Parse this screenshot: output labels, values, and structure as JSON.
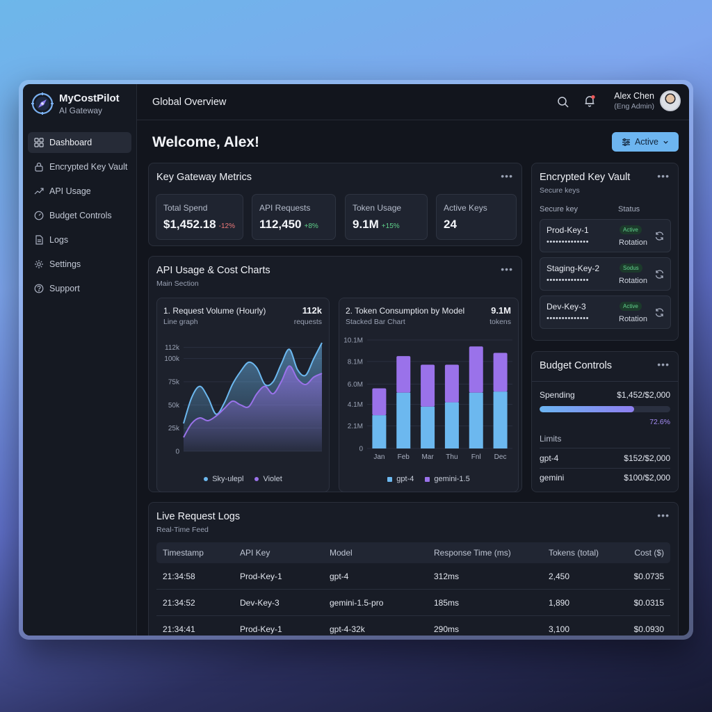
{
  "brand": {
    "name": "MyCostPilot",
    "subtitle": "AI Gateway"
  },
  "sidebar": {
    "items": [
      {
        "label": "Dashboard",
        "icon": "grid-icon",
        "active": true
      },
      {
        "label": "Encrypted Key Vault",
        "icon": "lock-icon"
      },
      {
        "label": "API Usage",
        "icon": "trend-icon"
      },
      {
        "label": "Budget Controls",
        "icon": "gauge-icon"
      },
      {
        "label": "Logs",
        "icon": "document-icon"
      },
      {
        "label": "Settings",
        "icon": "gear-icon"
      },
      {
        "label": "Support",
        "icon": "help-icon"
      }
    ]
  },
  "header": {
    "title": "Global Overview"
  },
  "user": {
    "name": "Alex Chen",
    "role": "(Eng Admin)"
  },
  "welcome": "Welcome, Alex!",
  "status_button": {
    "label": "Active"
  },
  "metrics": {
    "title": "Key Gateway Metrics",
    "items": [
      {
        "label": "Total Spend",
        "value": "$1,452.18",
        "delta": "-12%",
        "trend": "down"
      },
      {
        "label": "API Requests",
        "value": "112,450",
        "delta": "+8%",
        "trend": "up"
      },
      {
        "label": "Token Usage",
        "value": "9.1M",
        "delta": "+15%",
        "trend": "up"
      },
      {
        "label": "Active Keys",
        "value": "24",
        "delta": "",
        "trend": ""
      }
    ]
  },
  "charts_section": {
    "title": "API Usage & Cost Charts",
    "subtitle": "Main Section"
  },
  "colors": {
    "sky": "#6cb8ef",
    "violet": "#9a72ea",
    "accent": "#6db5f0"
  },
  "chart_data": [
    {
      "type": "area",
      "title": "1. Request Volume (Hourly)",
      "subtitle": "Line graph",
      "total": "112k",
      "unit": "requests",
      "y_ticks": [
        "0",
        "25k",
        "50k",
        "75k",
        "100k",
        "112k"
      ],
      "ylim": [
        0,
        120000
      ],
      "x": [
        0,
        1,
        2,
        3,
        4,
        5,
        6,
        7,
        8,
        9,
        10,
        11,
        12,
        13,
        14,
        15,
        16,
        17
      ],
      "series": [
        {
          "name": "Sky-ulepl",
          "color": "#6cb8ef",
          "values": [
            30000,
            58000,
            70000,
            58000,
            40000,
            52000,
            72000,
            86000,
            96000,
            90000,
            72000,
            75000,
            94000,
            110000,
            88000,
            82000,
            100000,
            117000
          ]
        },
        {
          "name": "Violet",
          "color": "#9a72ea",
          "values": [
            15000,
            30000,
            36000,
            33000,
            38000,
            46000,
            54000,
            50000,
            48000,
            62000,
            70000,
            62000,
            75000,
            92000,
            78000,
            72000,
            80000,
            84000
          ]
        }
      ]
    },
    {
      "type": "bar",
      "title": "2. Token Consumption by Model",
      "subtitle": "Stacked Bar Chart",
      "total": "9.1M",
      "unit": "tokens",
      "y_ticks": [
        "0",
        "2.1M",
        "4.1M",
        "6.0M",
        "8.1M",
        "10.1M"
      ],
      "ylim": [
        0,
        10.1
      ],
      "categories": [
        "Jan",
        "Feb",
        "Mar",
        "Thu",
        "Fnl",
        "Dec"
      ],
      "series": [
        {
          "name": "gpt-4",
          "color": "#6cb8ef",
          "values": [
            3.1,
            5.2,
            3.9,
            4.3,
            5.2,
            5.3
          ]
        },
        {
          "name": "gemini-1.5",
          "color": "#9a72ea",
          "values": [
            2.5,
            3.4,
            3.9,
            3.5,
            4.3,
            3.6
          ]
        }
      ]
    }
  ],
  "vault": {
    "title": "Encrypted Key Vault",
    "subtitle": "Secure keys",
    "col_key": "Secure key",
    "col_status": "Status",
    "keys": [
      {
        "name": "Prod-Key-1",
        "mask": "••••••••••••••",
        "badge": "Active",
        "status": "Rotation"
      },
      {
        "name": "Staging-Key-2",
        "mask": "••••••••••••••",
        "badge": "Sodus",
        "status": "Rotation"
      },
      {
        "name": "Dev-Key-3",
        "mask": "••••••••••••••",
        "badge": "Active",
        "status": "Rotation"
      }
    ]
  },
  "budget": {
    "title": "Budget Controls",
    "spending_label": "Spending",
    "spending_value": "$1,452/$2,000",
    "progress": 72.6,
    "progress_label": "72.6%",
    "limits_label": "Limits",
    "limits": [
      {
        "model": "gpt-4",
        "value": "$152/$2,000"
      },
      {
        "model": "gemini",
        "value": "$100/$2,000"
      }
    ]
  },
  "logs": {
    "title": "Live Request Logs",
    "subtitle": "Real-Time Feed",
    "columns": [
      "Timestamp",
      "API Key",
      "Model",
      "Response Time (ms)",
      "Tokens (total)",
      "Cost ($)"
    ],
    "rows": [
      [
        "21:34:58",
        "Prod-Key-1",
        "gpt-4",
        "312ms",
        "2,450",
        "$0.0735"
      ],
      [
        "21:34:52",
        "Dev-Key-3",
        "gemini-1.5-pro",
        "185ms",
        "1,890",
        "$0.0315"
      ],
      [
        "21:34:41",
        "Prod-Key-1",
        "gpt-4-32k",
        "290ms",
        "3,100",
        "$0.0930"
      ]
    ]
  }
}
